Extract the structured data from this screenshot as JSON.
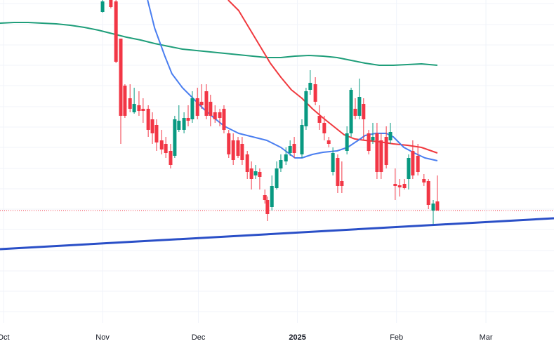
{
  "chart_data": {
    "type": "candlestick",
    "up_color": "#089981",
    "down_color": "#f23645",
    "grid": true,
    "xlim": [
      -1.1,
      172.3
    ],
    "ylim": [
      0,
      46
    ],
    "xticks": [
      {
        "value": 0,
        "label": "Oct"
      },
      {
        "value": 31,
        "label": "Nov"
      },
      {
        "value": 61,
        "label": "Dec"
      },
      {
        "value": 92,
        "label": "2025",
        "bold": true
      },
      {
        "value": 123,
        "label": "Feb"
      },
      {
        "value": 151,
        "label": "Mar"
      }
    ],
    "ygrid": [
      45.5,
      42.5,
      39.6,
      36.7,
      33.8,
      30.8,
      27.9,
      25.0,
      22.0,
      19.1,
      16.2,
      13.3,
      10.3,
      7.4,
      4.5,
      1.6
    ],
    "x": [
      31.0,
      33.6,
      35.2,
      36.7,
      38.0,
      39.6,
      40.9,
      42.4,
      43.7,
      45.3,
      46.6,
      47.9,
      49.5,
      50.8,
      52.3,
      53.6,
      54.9,
      56.5,
      57.8,
      59.1,
      60.7,
      62.0,
      63.5,
      64.8,
      66.2,
      67.7,
      69.0,
      70.5,
      71.9,
      73.4,
      74.7,
      76.3,
      77.6,
      78.9,
      80.2,
      81.8,
      82.6,
      84.0,
      85.5,
      86.8,
      88.4,
      89.7,
      91.0,
      93.4,
      94.7,
      96.0,
      97.6,
      98.9,
      100.4,
      101.8,
      103.1,
      104.6,
      105.9,
      107.5,
      108.8,
      110.1,
      111.4,
      112.7,
      114.3,
      115.6,
      116.9,
      118.2,
      119.8,
      121.1,
      122.6,
      124.0,
      125.5,
      126.8,
      128.1,
      129.7,
      131.6,
      133.0,
      134.5,
      135.8
    ],
    "open": [
      44.3,
      46,
      45.8,
      40.5,
      33.8,
      32,
      30,
      31,
      30.5,
      30.5,
      29,
      28.2,
      26,
      25.5,
      24.5,
      23.8,
      27.5,
      27.5,
      29.2,
      29,
      32,
      31.5,
      33,
      31.5,
      30,
      30,
      30.5,
      27,
      26,
      26,
      25.5,
      24,
      22,
      21,
      21.5,
      18.2,
      17.5,
      16.5,
      19.2,
      22,
      23,
      24.2,
      25.5,
      24,
      28,
      33.2,
      34,
      29.5,
      28.5,
      26,
      21.5,
      23.5,
      20.2,
      24.5,
      27,
      30.5,
      29.5,
      31.2,
      27,
      26,
      27,
      26,
      26.5,
      26,
      19.8,
      19.6,
      19.8,
      20.5,
      24.5,
      23.8,
      20.5,
      20.2,
      16,
      17.3
    ],
    "high": [
      47,
      46.5,
      46.5,
      40.5,
      34,
      34,
      33.5,
      33,
      32,
      31,
      30,
      29,
      27.5,
      26.5,
      25.5,
      29.5,
      31,
      30,
      31,
      33,
      33.5,
      34,
      34,
      32.5,
      31,
      30.5,
      31,
      27.5,
      27,
      26.5,
      26.5,
      24.5,
      23,
      22.5,
      22,
      19,
      18,
      21,
      23,
      24,
      25,
      26,
      26.5,
      29,
      33.5,
      36,
      35,
      31,
      29.5,
      26.5,
      25,
      24,
      23,
      28,
      33.5,
      32,
      34.8,
      32,
      27.5,
      28.5,
      28.5,
      27,
      28,
      28.5,
      22,
      20.5,
      20.5,
      24,
      26,
      25.5,
      21.2,
      20.5,
      17.5,
      21
    ],
    "low": [
      44.2,
      44.8,
      37,
      25.5,
      29.2,
      30,
      29.8,
      29.5,
      28.5,
      26.5,
      25.5,
      24.5,
      24,
      23.5,
      22,
      23.5,
      27.2,
      27,
      28,
      28.5,
      29,
      30.5,
      29,
      28,
      28.5,
      28,
      27,
      23.5,
      22.5,
      23.5,
      22.5,
      20.5,
      19,
      20.5,
      19,
      17,
      14.5,
      16,
      19,
      21.5,
      22.5,
      23.8,
      23.5,
      23.5,
      27.5,
      32.5,
      31,
      27.5,
      26,
      25,
      21,
      18.5,
      18.5,
      24,
      26.5,
      29,
      29,
      26,
      24,
      25.5,
      20.5,
      20.5,
      22,
      25.5,
      17.5,
      18,
      19,
      19,
      20.5,
      21,
      19.5,
      16.2,
      14,
      16
    ],
    "close": [
      45.8,
      45,
      37.2,
      29.5,
      29.5,
      30.5,
      31.2,
      30.2,
      30.2,
      27.5,
      27,
      25.7,
      24.7,
      24.2,
      22.5,
      29,
      28.8,
      29.2,
      28.8,
      32,
      29.5,
      31,
      29.5,
      29.5,
      29,
      29.2,
      27.5,
      24,
      23.2,
      23.8,
      23.2,
      21.5,
      20.5,
      21.6,
      20.8,
      17.5,
      15.5,
      19.5,
      22,
      23.2,
      24,
      25.2,
      24.2,
      28.2,
      33,
      34.2,
      31.5,
      28.5,
      27,
      25.5,
      24.2,
      19.5,
      19.5,
      27,
      33.2,
      29.5,
      32.2,
      29,
      24.5,
      26.5,
      21.5,
      21.5,
      22.5,
      27.2,
      19.5,
      19.3,
      19.2,
      23.5,
      21,
      21.5,
      20,
      16.8,
      17,
      16
    ],
    "overlays": [
      {
        "color": "#1f9e7a",
        "x": [
          -1.1,
          3.3,
          7.7,
          12.1,
          16.5,
          20.9,
          25.3,
          29.7,
          34.1,
          38.5,
          42.9,
          47.3,
          51.6,
          56.0,
          60.4,
          64.8,
          69.2,
          73.6,
          78.0,
          82.4,
          86.8,
          91.2,
          95.6,
          100.0,
          104.4,
          108.8,
          113.2,
          117.6,
          122.0,
          126.4,
          130.8,
          135.8
        ],
        "values": [
          42.7,
          42.8,
          42.8,
          42.7,
          42.6,
          42.4,
          42.1,
          41.7,
          41.2,
          40.7,
          40.3,
          39.8,
          39.4,
          39,
          38.8,
          38.6,
          38.4,
          38.2,
          38,
          37.8,
          37.8,
          38,
          38.1,
          38,
          37.8,
          37.4,
          37,
          36.7,
          36.7,
          36.8,
          36.9,
          36.7
        ]
      },
      {
        "color": "#f0393e",
        "x": [
          70.3,
          73.6,
          76.9,
          80.2,
          83.5,
          86.8,
          90.1,
          93.4,
          96.7,
          100.0,
          103.3,
          106.6,
          109.9,
          113.2,
          117.6,
          122.0,
          126.4,
          130.8,
          135.8
        ],
        "values": [
          46,
          44.5,
          42,
          39.5,
          37,
          35,
          33.2,
          32,
          30.5,
          29.2,
          28,
          26.8,
          26.2,
          26,
          25.8,
          25.5,
          25.3,
          25,
          24.2
        ]
      },
      {
        "color": "#4a7ef0",
        "x": [
          45.1,
          47.3,
          50.5,
          52.7,
          56.0,
          59.3,
          62.6,
          65.9,
          69.2,
          73.6,
          78.0,
          82.4,
          86.8,
          91.2,
          93.4,
          96.7,
          100.0,
          104.4,
          107.7,
          111.0,
          113.2,
          116.5,
          119.8,
          122.0,
          125.3,
          128.6,
          131.9,
          135.8
        ],
        "values": [
          46,
          42,
          38,
          35.5,
          33.5,
          32,
          30.5,
          29.2,
          28,
          27,
          26.5,
          26,
          25,
          23.5,
          23.5,
          24,
          24.3,
          24.5,
          25,
          26,
          26.7,
          27,
          27,
          26.5,
          25,
          24.2,
          23.5,
          23.1
        ]
      }
    ],
    "trendline": {
      "color": "#2a4fc7",
      "x": [
        -1.1,
        172.3
      ],
      "values": [
        10.5,
        14.9
      ]
    },
    "price_line": {
      "color": "#f23645",
      "value": 16
    }
  }
}
